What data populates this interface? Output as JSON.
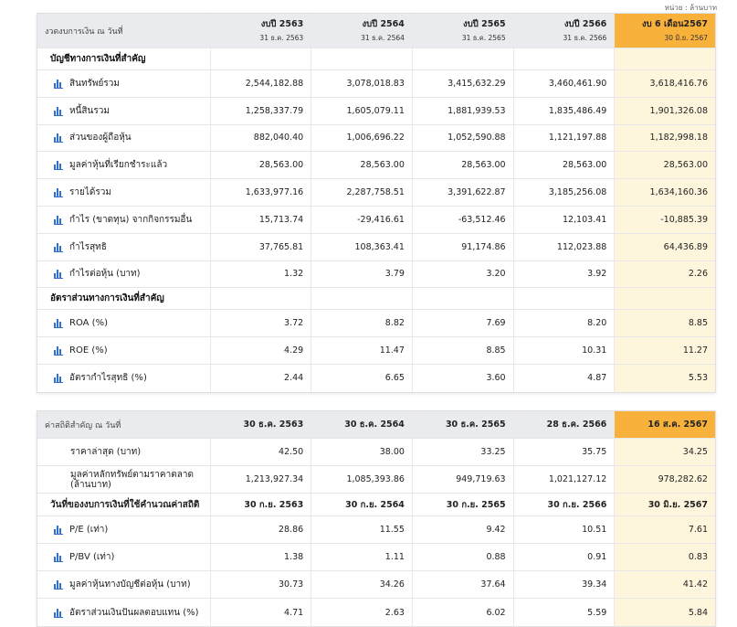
{
  "unit_note": "หน่วย : ล้านบาท",
  "table1": {
    "header": {
      "label": "งวดงบการเงิน ณ วันที่",
      "cols": [
        {
          "year": "งบปี 2563",
          "date": "31 ธ.ค. 2563"
        },
        {
          "year": "งบปี 2564",
          "date": "31 ธ.ค. 2564"
        },
        {
          "year": "งบปี 2565",
          "date": "31 ธ.ค. 2565"
        },
        {
          "year": "งบปี 2566",
          "date": "31 ธ.ค. 2566"
        },
        {
          "year": "งบ 6 เดือน2567",
          "date": "30 มิ.ย. 2567"
        }
      ]
    },
    "section1": "บัญชีทางการเงินที่สำคัญ",
    "rows1": [
      {
        "label": "สินทรัพย์รวม",
        "v": [
          "2,544,182.88",
          "3,078,018.83",
          "3,415,632.29",
          "3,460,461.90",
          "3,618,416.76"
        ]
      },
      {
        "label": "หนี้สินรวม",
        "v": [
          "1,258,337.79",
          "1,605,079.11",
          "1,881,939.53",
          "1,835,486.49",
          "1,901,326.08"
        ]
      },
      {
        "label": "ส่วนของผู้ถือหุ้น",
        "v": [
          "882,040.40",
          "1,006,696.22",
          "1,052,590.88",
          "1,121,197.88",
          "1,182,998.18"
        ]
      },
      {
        "label": "มูลค่าหุ้นที่เรียกชำระแล้ว",
        "v": [
          "28,563.00",
          "28,563.00",
          "28,563.00",
          "28,563.00",
          "28,563.00"
        ]
      },
      {
        "label": "รายได้รวม",
        "v": [
          "1,633,977.16",
          "2,287,758.51",
          "3,391,622.87",
          "3,185,256.08",
          "1,634,160.36"
        ]
      },
      {
        "label": "กำไร (ขาดทุน) จากกิจกรรมอื่น",
        "v": [
          "15,713.74",
          "-29,416.61",
          "-63,512.46",
          "12,103.41",
          "-10,885.39"
        ]
      },
      {
        "label": "กำไรสุทธิ",
        "v": [
          "37,765.81",
          "108,363.41",
          "91,174.86",
          "112,023.88",
          "64,436.89"
        ]
      },
      {
        "label": "กำไรต่อหุ้น (บาท)",
        "v": [
          "1.32",
          "3.79",
          "3.20",
          "3.92",
          "2.26"
        ]
      }
    ],
    "section2": "อัตราส่วนทางการเงินที่สำคัญ",
    "rows2": [
      {
        "label": "ROA (%)",
        "v": [
          "3.72",
          "8.82",
          "7.69",
          "8.20",
          "8.85"
        ]
      },
      {
        "label": "ROE (%)",
        "v": [
          "4.29",
          "11.47",
          "8.85",
          "10.31",
          "11.27"
        ]
      },
      {
        "label": "อัตรากำไรสุทธิ (%)",
        "v": [
          "2.44",
          "6.65",
          "3.60",
          "4.87",
          "5.53"
        ]
      }
    ]
  },
  "table2": {
    "header": {
      "label": "ค่าสถิติสำคัญ ณ วันที่",
      "cols": [
        "30 ธ.ค. 2563",
        "30 ธ.ค. 2564",
        "30 ธ.ค. 2565",
        "28 ธ.ค. 2566",
        "16 ส.ค. 2567"
      ]
    },
    "rows1": [
      {
        "label": "ราคาล่าสุด (บาท)",
        "v": [
          "42.50",
          "38.00",
          "33.25",
          "35.75",
          "34.25"
        ]
      },
      {
        "label": "มูลค่าหลักทรัพย์ตามราคาตลาด (ล้านบาท)",
        "v": [
          "1,213,927.34",
          "1,085,393.86",
          "949,719.63",
          "1,021,127.12",
          "978,282.62"
        ]
      }
    ],
    "section": {
      "label": "วันที่ของงบการเงินที่ใช้คำนวณค่าสถิติ",
      "v": [
        "30 ก.ย. 2563",
        "30 ก.ย. 2564",
        "30 ก.ย. 2565",
        "30 ก.ย. 2566",
        "30 มิ.ย. 2567"
      ]
    },
    "rows2": [
      {
        "label": "P/E (เท่า)",
        "v": [
          "28.86",
          "11.55",
          "9.42",
          "10.51",
          "7.61"
        ]
      },
      {
        "label": "P/BV (เท่า)",
        "v": [
          "1.38",
          "1.11",
          "0.88",
          "0.91",
          "0.83"
        ]
      },
      {
        "label": "มูลค่าหุ้นทางบัญชีต่อหุ้น (บาท)",
        "v": [
          "30.73",
          "34.26",
          "37.64",
          "39.34",
          "41.42"
        ]
      },
      {
        "label": "อัตราส่วนเงินปันผลตอบแทน (%)",
        "v": [
          "4.71",
          "2.63",
          "6.02",
          "5.59",
          "5.84"
        ]
      }
    ]
  },
  "icons": {
    "row_icon": "bar-chart-icon",
    "icon_color": "#2f6fd0",
    "highlight_color": "#f8b23c"
  }
}
